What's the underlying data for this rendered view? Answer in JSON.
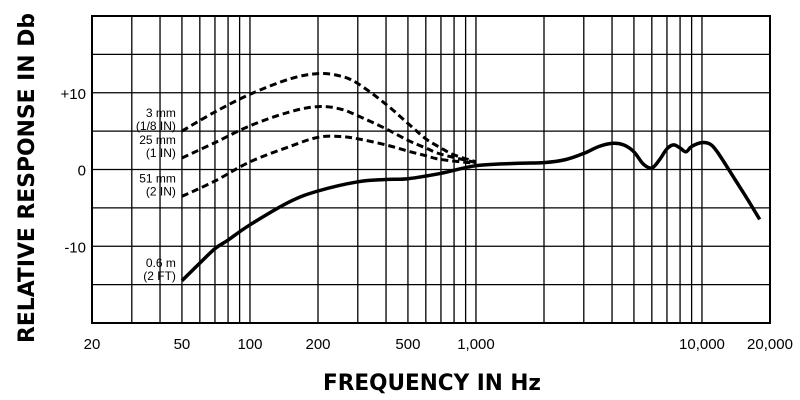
{
  "chart_data": {
    "type": "line",
    "xlabel": "FREQUENCY IN Hz",
    "ylabel": "RELATIVE RESPONSE IN Db",
    "x_scale": "log",
    "xlim": [
      20,
      20000
    ],
    "ylim": [
      -20,
      20
    ],
    "grid": true,
    "x_tick_labels": [
      {
        "value": 20,
        "label": "20"
      },
      {
        "value": 50,
        "label": "50"
      },
      {
        "value": 100,
        "label": "100"
      },
      {
        "value": 200,
        "label": "200"
      },
      {
        "value": 500,
        "label": "500"
      },
      {
        "value": 1000,
        "label": "1,000"
      },
      {
        "value": 10000,
        "label": "10,000"
      },
      {
        "value": 20000,
        "label": "20,000"
      }
    ],
    "y_tick_labels": [
      {
        "value": 10,
        "label": "+10"
      },
      {
        "value": 0,
        "label": "0"
      },
      {
        "value": -10,
        "label": "-10"
      }
    ],
    "series": [
      {
        "name": "3 mm (1/8 IN)",
        "label_lines": [
          "3 mm",
          "(1/8 IN)"
        ],
        "style": "dashed",
        "points": [
          [
            50,
            5
          ],
          [
            70,
            7.5
          ],
          [
            100,
            9.8
          ],
          [
            150,
            11.8
          ],
          [
            200,
            12.5
          ],
          [
            250,
            12.2
          ],
          [
            300,
            11.2
          ],
          [
            400,
            8.5
          ],
          [
            500,
            6
          ],
          [
            600,
            4
          ],
          [
            700,
            2.8
          ],
          [
            800,
            1.9
          ],
          [
            1000,
            1
          ]
        ]
      },
      {
        "name": "25 mm (1 IN)",
        "label_lines": [
          "25 mm",
          "(1 IN)"
        ],
        "style": "dashed",
        "points": [
          [
            50,
            1.5
          ],
          [
            70,
            3.5
          ],
          [
            100,
            5.7
          ],
          [
            150,
            7.5
          ],
          [
            200,
            8.2
          ],
          [
            250,
            7.9
          ],
          [
            300,
            7
          ],
          [
            400,
            5.3
          ],
          [
            500,
            3.8
          ],
          [
            600,
            2.8
          ],
          [
            700,
            2
          ],
          [
            1000,
            0.9
          ]
        ]
      },
      {
        "name": "51 mm (2 IN)",
        "label_lines": [
          "51 mm",
          "(2 IN)"
        ],
        "style": "dashed",
        "points": [
          [
            50,
            -3.5
          ],
          [
            70,
            -1.5
          ],
          [
            100,
            1
          ],
          [
            150,
            3
          ],
          [
            200,
            4.2
          ],
          [
            250,
            4.3
          ],
          [
            300,
            4
          ],
          [
            400,
            3.2
          ],
          [
            500,
            2.4
          ],
          [
            600,
            1.8
          ],
          [
            700,
            1.3
          ],
          [
            1000,
            0.8
          ]
        ]
      },
      {
        "name": "0.6 m (2 FT)",
        "label_lines": [
          "0.6 m",
          "(2 FT)"
        ],
        "style": "solid",
        "points": [
          [
            50,
            -14.5
          ],
          [
            60,
            -12.2
          ],
          [
            70,
            -10.3
          ],
          [
            80,
            -9.2
          ],
          [
            100,
            -7.2
          ],
          [
            150,
            -4.2
          ],
          [
            200,
            -2.8
          ],
          [
            300,
            -1.6
          ],
          [
            400,
            -1.3
          ],
          [
            500,
            -1.2
          ],
          [
            700,
            -0.5
          ],
          [
            1000,
            0.5
          ],
          [
            1500,
            0.8
          ],
          [
            2000,
            0.9
          ],
          [
            2500,
            1.3
          ],
          [
            3000,
            2.1
          ],
          [
            3500,
            3
          ],
          [
            4000,
            3.4
          ],
          [
            4500,
            3.2
          ],
          [
            5000,
            2.3
          ],
          [
            5500,
            0.7
          ],
          [
            6000,
            0.2
          ],
          [
            6500,
            1.3
          ],
          [
            7000,
            2.7
          ],
          [
            7500,
            3.2
          ],
          [
            8000,
            2.8
          ],
          [
            8500,
            2.3
          ],
          [
            9000,
            3
          ],
          [
            10000,
            3.5
          ],
          [
            11000,
            3.2
          ],
          [
            12000,
            1.8
          ],
          [
            14000,
            -1.3
          ],
          [
            16000,
            -4
          ],
          [
            18000,
            -6.5
          ]
        ]
      }
    ]
  }
}
